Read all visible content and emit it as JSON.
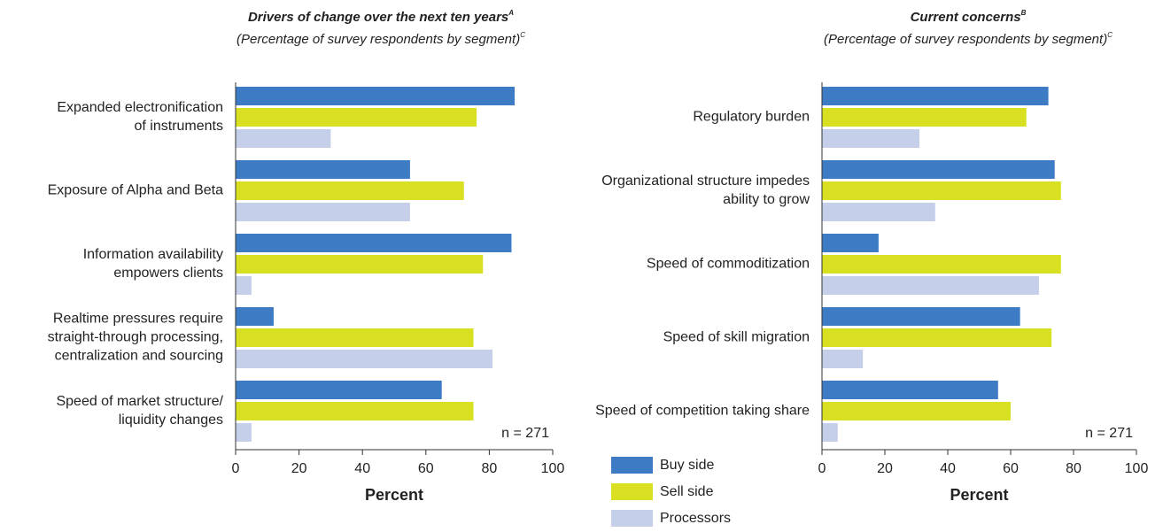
{
  "chart_data": [
    {
      "type": "hbar",
      "title": "Drivers of change over the next ten years",
      "title_note": "A",
      "subtitle": "(Percentage of survey respondents by segment)",
      "subtitle_note": "C",
      "categories": [
        "Expanded electronification\nof instruments",
        "Exposure of Alpha and Beta",
        "Information availability\nempowers clients",
        "Realtime pressures require\nstraight-through processing,\ncentralization and sourcing",
        "Speed of market structure/\nliquidity changes"
      ],
      "series": [
        {
          "name": "Buy side",
          "color": "#3d7cc4",
          "values": [
            88,
            55,
            87,
            12,
            65
          ]
        },
        {
          "name": "Sell side",
          "color": "#d9e021",
          "values": [
            76,
            72,
            78,
            75,
            75
          ]
        },
        {
          "name": "Processors",
          "color": "#c5cfea",
          "values": [
            30,
            55,
            5,
            81,
            5
          ]
        }
      ],
      "xlim": [
        0,
        100
      ],
      "xticks": [
        0,
        20,
        40,
        60,
        80,
        100
      ],
      "xlabel": "Percent",
      "annotation": "n = 271",
      "legend": true
    },
    {
      "type": "hbar",
      "title": "Current concerns",
      "title_note": "B",
      "subtitle": "(Percentage of survey respondents by segment)",
      "subtitle_note": "C",
      "categories": [
        "Regulatory burden",
        "Organizational structure impedes\nability to grow",
        "Speed of commoditization",
        "Speed of skill migration",
        "Speed of competition taking share"
      ],
      "series": [
        {
          "name": "Buy side",
          "color": "#3d7cc4",
          "values": [
            72,
            74,
            18,
            63,
            56
          ]
        },
        {
          "name": "Sell side",
          "color": "#d9e021",
          "values": [
            65,
            76,
            76,
            73,
            60
          ]
        },
        {
          "name": "Processors",
          "color": "#c5cfea",
          "values": [
            31,
            36,
            69,
            13,
            5
          ]
        }
      ],
      "xlim": [
        0,
        100
      ],
      "xticks": [
        0,
        20,
        40,
        60,
        80,
        100
      ],
      "xlabel": "Percent",
      "annotation": "n = 271",
      "legend": false
    }
  ]
}
